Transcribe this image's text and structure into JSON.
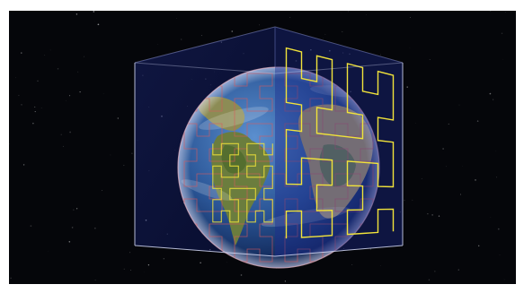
{
  "scene": {
    "subject": "earth-in-wireframe-cube",
    "colors": {
      "background": "#05060a",
      "star": "#ffffff",
      "ocean_light": "#3d6fb3",
      "ocean_dark": "#0c1f52",
      "land_green": "#5f7a3a",
      "land_tan": "#b09a62",
      "cube_edge": "#c9cff0",
      "cube_face_tint": "#1a2a8a",
      "curve_yellow": "#f1e33a",
      "curve_red": "#d8595c"
    }
  }
}
